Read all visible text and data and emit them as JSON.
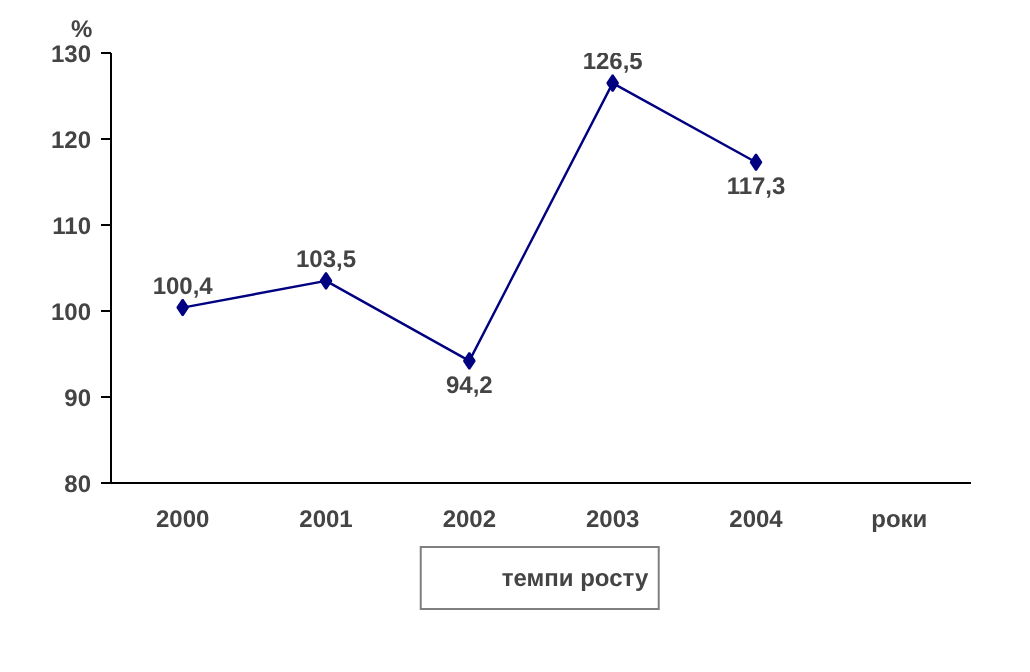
{
  "chart_data": {
    "type": "line",
    "ylabel": "%",
    "xlabel": "роки",
    "categories": [
      "2000",
      "2001",
      "2002",
      "2003",
      "2004"
    ],
    "series": [
      {
        "name": "темпи росту",
        "color": "#000080",
        "values": [
          100.4,
          103.5,
          94.2,
          126.5,
          117.3
        ],
        "value_labels": [
          "100,4",
          "103,5",
          "94,2",
          "126,5",
          "117,3"
        ]
      }
    ],
    "ylim": [
      80,
      130
    ],
    "yticks": [
      80,
      90,
      100,
      110,
      120,
      130
    ],
    "grid": false,
    "legend": "bottom",
    "marker": "diamond",
    "line_style": "solid"
  }
}
